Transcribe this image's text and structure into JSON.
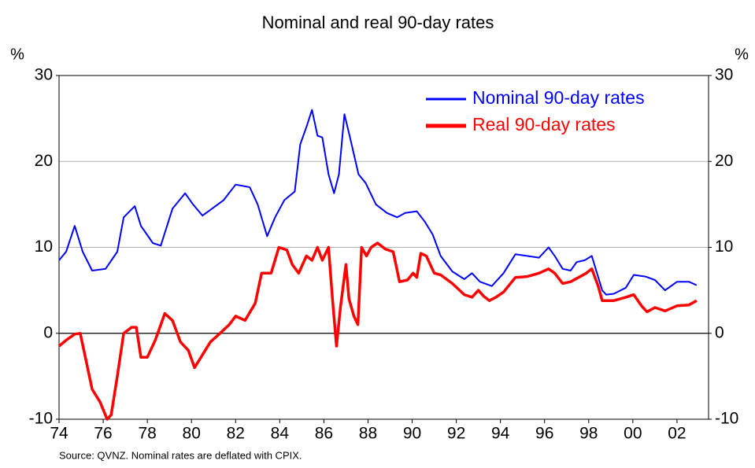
{
  "chart_data": {
    "type": "line",
    "title": "Nominal and real 90-day rates",
    "ylabel": "%",
    "y2label": "%",
    "source": "Source: QVNZ. Nominal rates are deflated with CPIX.",
    "xlim": [
      1974,
      2003.43
    ],
    "xticks": [
      {
        "value": 1974,
        "label": "74"
      },
      {
        "value": 1976,
        "label": "76"
      },
      {
        "value": 1978,
        "label": "78"
      },
      {
        "value": 1980,
        "label": "80"
      },
      {
        "value": 1982,
        "label": "82"
      },
      {
        "value": 1984,
        "label": "84"
      },
      {
        "value": 1986,
        "label": "86"
      },
      {
        "value": 1988,
        "label": "88"
      },
      {
        "value": 1990,
        "label": "90"
      },
      {
        "value": 1992,
        "label": "92"
      },
      {
        "value": 1994,
        "label": "94"
      },
      {
        "value": 1996,
        "label": "96"
      },
      {
        "value": 1998,
        "label": "98"
      },
      {
        "value": 2000,
        "label": "00"
      },
      {
        "value": 2002,
        "label": "02"
      }
    ],
    "ylim": [
      -10,
      30
    ],
    "yticks": [
      -10,
      0,
      10,
      20,
      30
    ],
    "y2lim": [
      -10,
      30
    ],
    "y2ticks": [
      -10,
      0,
      10,
      20,
      30
    ],
    "grid": true,
    "legend": "upper right",
    "series": [
      {
        "name": "Nominal 90-day rates",
        "color": "#0000ff",
        "x": [
          1974.0,
          1974.32,
          1974.71,
          1975.07,
          1975.5,
          1976.11,
          1976.64,
          1976.93,
          1977.43,
          1977.71,
          1978.25,
          1978.61,
          1979.14,
          1979.71,
          1980.07,
          1980.5,
          1980.93,
          1981.46,
          1982.0,
          1982.64,
          1983.0,
          1983.43,
          1983.79,
          1984.21,
          1984.68,
          1984.93,
          1985.21,
          1985.46,
          1985.71,
          1985.93,
          1986.21,
          1986.46,
          1986.68,
          1986.93,
          1987.21,
          1987.57,
          1987.89,
          1988.36,
          1988.86,
          1989.32,
          1989.68,
          1990.21,
          1990.57,
          1990.93,
          1991.29,
          1991.82,
          1992.36,
          1992.71,
          1993.07,
          1993.61,
          1994.14,
          1994.68,
          1995.21,
          1995.75,
          1996.18,
          1996.46,
          1996.82,
          1997.18,
          1997.46,
          1997.82,
          1998.14,
          1998.61,
          1998.79,
          1999.14,
          1999.68,
          2000.04,
          2000.57,
          2001.0,
          2001.46,
          2002.0,
          2002.54,
          2002.89
        ],
        "values": [
          8.5,
          9.5,
          12.5,
          9.5,
          7.3,
          7.5,
          9.5,
          13.5,
          14.8,
          12.5,
          10.5,
          10.2,
          14.5,
          16.3,
          15,
          13.7,
          14.5,
          15.5,
          17.3,
          17,
          15,
          11.3,
          13.5,
          15.5,
          16.5,
          22,
          24,
          26,
          23,
          22.8,
          18.5,
          16.3,
          18.5,
          25.5,
          22.5,
          18.5,
          17.5,
          15,
          14,
          13.5,
          14,
          14.2,
          13,
          11.5,
          9,
          7.2,
          6.3,
          7,
          6,
          5.5,
          7,
          9.2,
          9,
          8.8,
          10,
          9,
          7.5,
          7.3,
          8.3,
          8.5,
          9,
          5,
          4.5,
          4.6,
          5.3,
          6.8,
          6.6,
          6.2,
          5,
          6,
          6,
          5.6
        ]
      },
      {
        "name": "Real 90-day rates",
        "color": "#ff0000",
        "x": [
          1974.0,
          1974.32,
          1974.71,
          1974.96,
          1975.21,
          1975.5,
          1975.86,
          1976.18,
          1976.36,
          1976.64,
          1976.93,
          1977.29,
          1977.5,
          1977.71,
          1978.0,
          1978.36,
          1978.79,
          1979.14,
          1979.5,
          1979.86,
          1980.14,
          1980.5,
          1980.86,
          1981.29,
          1981.71,
          1982.0,
          1982.43,
          1982.89,
          1983.18,
          1983.61,
          1983.96,
          1984.32,
          1984.57,
          1984.86,
          1985.21,
          1985.46,
          1985.71,
          1985.93,
          1986.21,
          1986.39,
          1986.57,
          1986.75,
          1987.0,
          1987.14,
          1987.36,
          1987.54,
          1987.71,
          1987.93,
          1988.14,
          1988.43,
          1988.79,
          1989.14,
          1989.43,
          1989.79,
          1990.04,
          1990.21,
          1990.39,
          1990.64,
          1991.0,
          1991.29,
          1991.82,
          1992.36,
          1992.71,
          1993.0,
          1993.25,
          1993.5,
          1993.79,
          1994.14,
          1994.68,
          1995.21,
          1995.75,
          1996.18,
          1996.46,
          1996.82,
          1997.18,
          1997.54,
          1997.89,
          1998.14,
          1998.43,
          1998.61,
          1999.14,
          1999.68,
          2000.04,
          2000.39,
          2000.64,
          2001.0,
          2001.46,
          2002.0,
          2002.54,
          2002.89
        ],
        "values": [
          -1.5,
          -0.8,
          -0.1,
          0,
          -3,
          -6.5,
          -8,
          -10,
          -9.5,
          -5,
          0,
          0.7,
          0.7,
          -2.8,
          -2.8,
          -0.8,
          2.3,
          1.5,
          -1,
          -2,
          -4,
          -2.5,
          -1,
          0,
          1,
          2,
          1.5,
          3.5,
          7,
          7,
          10,
          9.7,
          8,
          7,
          9,
          8.5,
          10,
          8.5,
          10,
          4,
          -1.5,
          3,
          8,
          4,
          2,
          1,
          10,
          9,
          10,
          10.5,
          9.8,
          9.5,
          6,
          6.2,
          7,
          6.5,
          9.3,
          9,
          7,
          6.8,
          5.8,
          4.5,
          4.2,
          5,
          4.3,
          3.8,
          4.2,
          4.8,
          6.5,
          6.6,
          7,
          7.5,
          7,
          5.8,
          6,
          6.5,
          7,
          7.5,
          5.5,
          3.8,
          3.8,
          4.2,
          4.5,
          3.2,
          2.5,
          3,
          2.6,
          3.2,
          3.3,
          3.8
        ]
      }
    ]
  }
}
